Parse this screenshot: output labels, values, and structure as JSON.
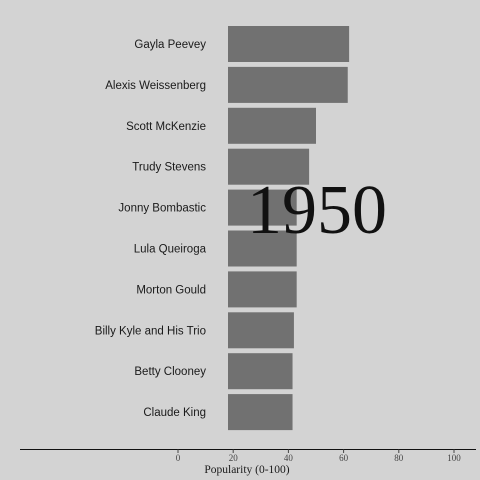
{
  "chart_data": {
    "type": "bar",
    "orientation": "horizontal",
    "categories": [
      "Gayla Peevey",
      "Alexis Weissenberg",
      "Scott McKenzie",
      "Trudy Stevens",
      "Jonny Bombastic",
      "Lula Queiroga",
      "Morton Gould",
      "Billy Kyle and His Trio",
      "Betty Clooney",
      "Claude King"
    ],
    "values": [
      62,
      61.5,
      50,
      47.5,
      43,
      43,
      43,
      42,
      41.5,
      41.5
    ],
    "xlabel": "Popularity (0-100)",
    "xticks": [
      0,
      20,
      40,
      60,
      80,
      100
    ],
    "xlim": [
      0,
      100
    ],
    "year": "1950",
    "grid": false
  }
}
